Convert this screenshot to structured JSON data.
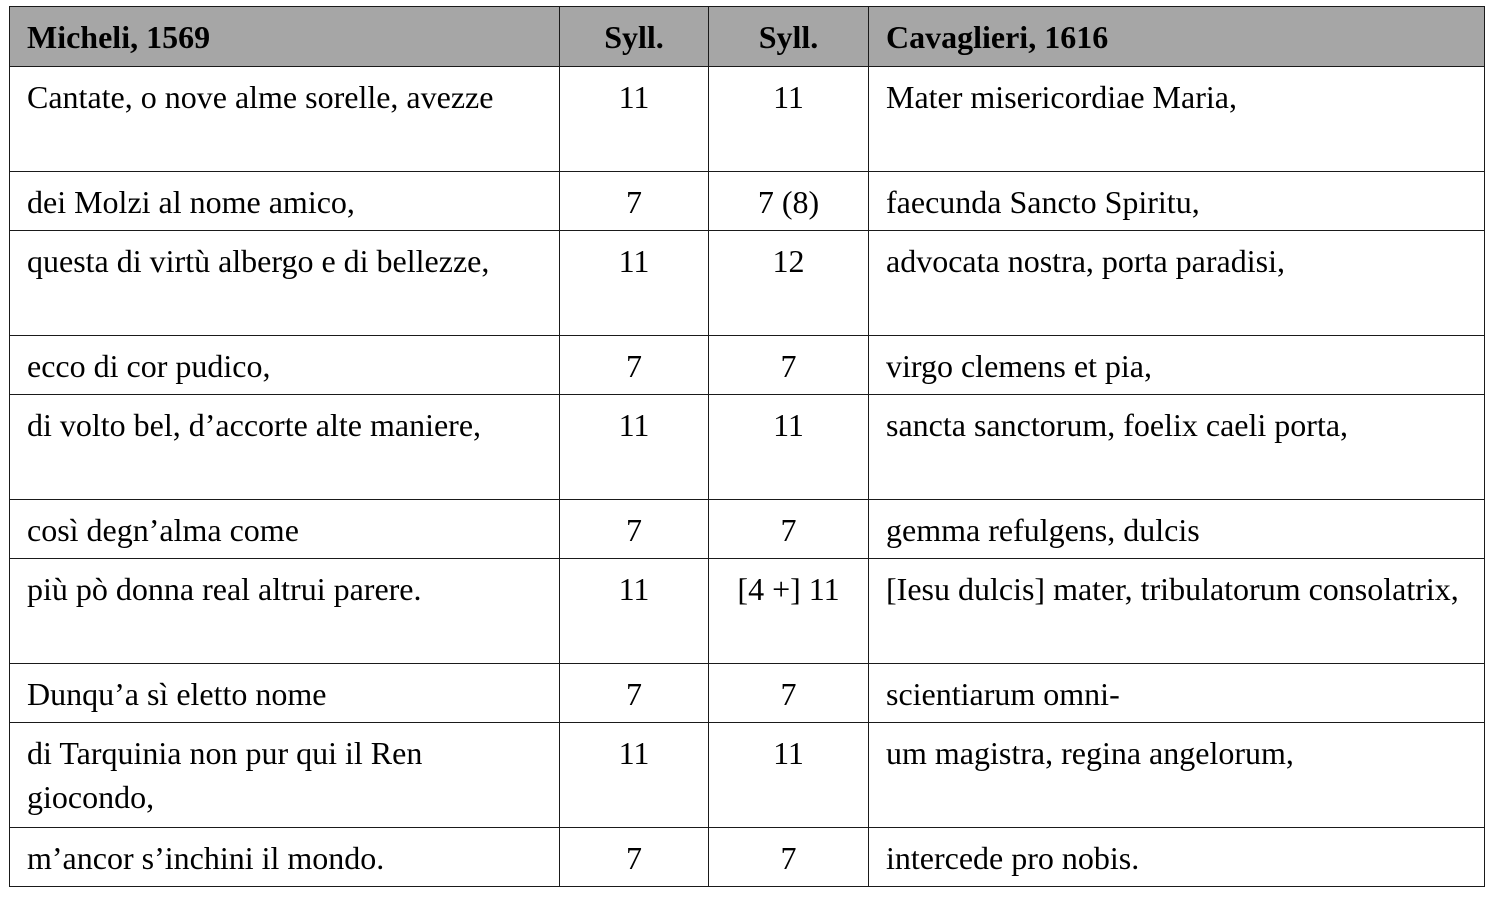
{
  "table": {
    "headers": [
      "Micheli, 1569",
      "Syll.",
      "Syll.",
      "Cavaglieri, 1616"
    ],
    "rows": [
      {
        "micheli": "Cantate, o nove alme sorelle, avezze",
        "syll_micheli": "11",
        "syll_cavaglieri": "11",
        "cavaglieri": "Mater misericordiae Maria,"
      },
      {
        "micheli": "dei Molzi al nome amico,",
        "syll_micheli": "7",
        "syll_cavaglieri": "7 (8)",
        "cavaglieri": "faecunda Sancto Spiritu,"
      },
      {
        "micheli": "questa di virtù albergo e di bellezze,",
        "syll_micheli": "11",
        "syll_cavaglieri": "12",
        "cavaglieri": "advocata nostra, porta paradisi,"
      },
      {
        "micheli": "ecco di cor pudico,",
        "syll_micheli": "7",
        "syll_cavaglieri": "7",
        "cavaglieri": "virgo clemens et pia,"
      },
      {
        "micheli": "di volto bel, d’accorte alte maniere,",
        "syll_micheli": "11",
        "syll_cavaglieri": "11",
        "cavaglieri": "sancta sanctorum, foelix caeli porta,"
      },
      {
        "micheli": "così degn’alma come",
        "syll_micheli": "7",
        "syll_cavaglieri": "7",
        "cavaglieri": "gemma refulgens, dulcis"
      },
      {
        "micheli": "più pò donna real altrui parere.",
        "syll_micheli": "11",
        "syll_cavaglieri": "[4 +] 11",
        "cavaglieri": "[Iesu dulcis] mater, tribulatorum consolatrix,"
      },
      {
        "micheli": "Dunqu’a sì eletto nome",
        "syll_micheli": "7",
        "syll_cavaglieri": "7",
        "cavaglieri": "scientiarum omni-"
      },
      {
        "micheli": "di Tarquinia non pur qui il Ren giocondo,",
        "syll_micheli": "11",
        "syll_cavaglieri": "11",
        "cavaglieri": "um magistra, regina angelorum,"
      },
      {
        "micheli": "m’ancor s’inchini il mondo.",
        "syll_micheli": "7",
        "syll_cavaglieri": "7",
        "cavaglieri": "intercede pro nobis."
      }
    ]
  },
  "colors": {
    "header_bg": "#a6a6a6",
    "border": "#1a1a1a",
    "text": "#000000"
  }
}
